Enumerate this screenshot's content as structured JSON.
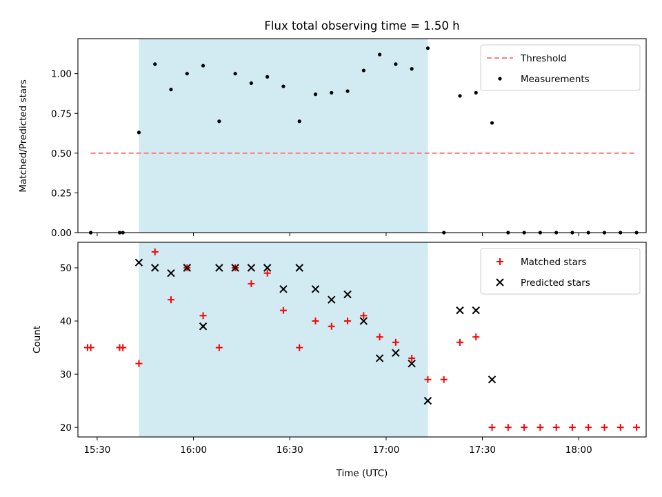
{
  "chart_data": [
    {
      "type": "scatter",
      "title": "Flux total observing time = 1.50 h",
      "xlabel": "",
      "ylabel": "Matched/Predicted stars",
      "ylim": [
        0,
        1.22
      ],
      "yticks": [
        "0.00",
        "0.25",
        "0.50",
        "0.75",
        "1.00"
      ],
      "ytick_values": [
        0,
        0.25,
        0.5,
        0.75,
        1.0
      ],
      "legend_position": "top-right",
      "shaded_span_x": [
        "15:43",
        "17:13"
      ],
      "shaded_color": "#add8e6",
      "threshold": {
        "name": "Threshold",
        "y": 0.5,
        "x": [
          "15:28",
          "18:18"
        ],
        "color": "#ff7f7f"
      },
      "series": [
        {
          "name": "Measurements",
          "color": "#000000",
          "marker": "dot",
          "x": [
            "15:28",
            "15:28",
            "15:37",
            "15:38",
            "15:43",
            "15:48",
            "15:53",
            "15:58",
            "16:03",
            "16:08",
            "16:13",
            "16:18",
            "16:23",
            "16:28",
            "16:33",
            "16:38",
            "16:43",
            "16:48",
            "16:53",
            "16:58",
            "17:03",
            "17:08",
            "17:13",
            "17:18",
            "17:23",
            "17:28",
            "17:33",
            "17:38",
            "17:43",
            "17:48",
            "17:53",
            "17:58",
            "18:03",
            "18:08",
            "18:13",
            "18:18"
          ],
          "values": [
            0,
            0,
            0,
            0,
            0.63,
            1.06,
            0.9,
            1.0,
            1.05,
            0.7,
            1.0,
            0.94,
            0.98,
            0.92,
            0.7,
            0.87,
            0.88,
            0.89,
            1.02,
            1.12,
            1.06,
            1.03,
            1.16,
            0,
            0.86,
            0.88,
            0.69,
            0,
            0,
            0,
            0,
            0,
            0,
            0,
            0,
            0
          ]
        }
      ]
    },
    {
      "type": "scatter",
      "title": "",
      "xlabel": "Time (UTC)",
      "ylabel": "Count",
      "ylim": [
        18.2,
        54.8
      ],
      "yticks": [
        "20",
        "30",
        "40",
        "50"
      ],
      "ytick_values": [
        20,
        30,
        40,
        50
      ],
      "xticks": [
        "15:30",
        "16:00",
        "16:30",
        "17:00",
        "17:30",
        "18:00"
      ],
      "legend_position": "top-right",
      "shaded_span_x": [
        "15:43",
        "17:13"
      ],
      "shaded_color": "#add8e6",
      "series": [
        {
          "name": "Matched stars",
          "color": "#ff0000",
          "marker": "plus",
          "x": [
            "15:27",
            "15:28",
            "15:37",
            "15:38",
            "15:43",
            "15:48",
            "15:53",
            "15:58",
            "16:03",
            "16:08",
            "16:13",
            "16:18",
            "16:23",
            "16:28",
            "16:33",
            "16:38",
            "16:43",
            "16:48",
            "16:53",
            "16:58",
            "17:03",
            "17:08",
            "17:13",
            "17:18",
            "17:23",
            "17:28",
            "17:33",
            "17:38",
            "17:43",
            "17:48",
            "17:53",
            "17:58",
            "18:03",
            "18:08",
            "18:13",
            "18:18"
          ],
          "values": [
            35,
            35,
            35,
            35,
            32,
            53,
            44,
            50,
            41,
            35,
            50,
            47,
            49,
            42,
            35,
            40,
            39,
            40,
            41,
            37,
            36,
            33,
            29,
            29,
            36,
            37,
            20,
            20,
            20,
            20,
            20,
            20,
            20,
            20,
            20,
            20
          ]
        },
        {
          "name": "Predicted stars",
          "color": "#000000",
          "marker": "x",
          "x": [
            "15:43",
            "15:48",
            "15:53",
            "15:58",
            "16:03",
            "16:08",
            "16:13",
            "16:18",
            "16:23",
            "16:28",
            "16:33",
            "16:38",
            "16:43",
            "16:48",
            "16:53",
            "16:58",
            "17:03",
            "17:08",
            "17:13",
            "17:23",
            "17:28",
            "17:33"
          ],
          "values": [
            51,
            50,
            49,
            50,
            39,
            50,
            50,
            50,
            50,
            46,
            50,
            46,
            44,
            45,
            40,
            33,
            34,
            32,
            25,
            42,
            42,
            29
          ]
        }
      ]
    }
  ]
}
